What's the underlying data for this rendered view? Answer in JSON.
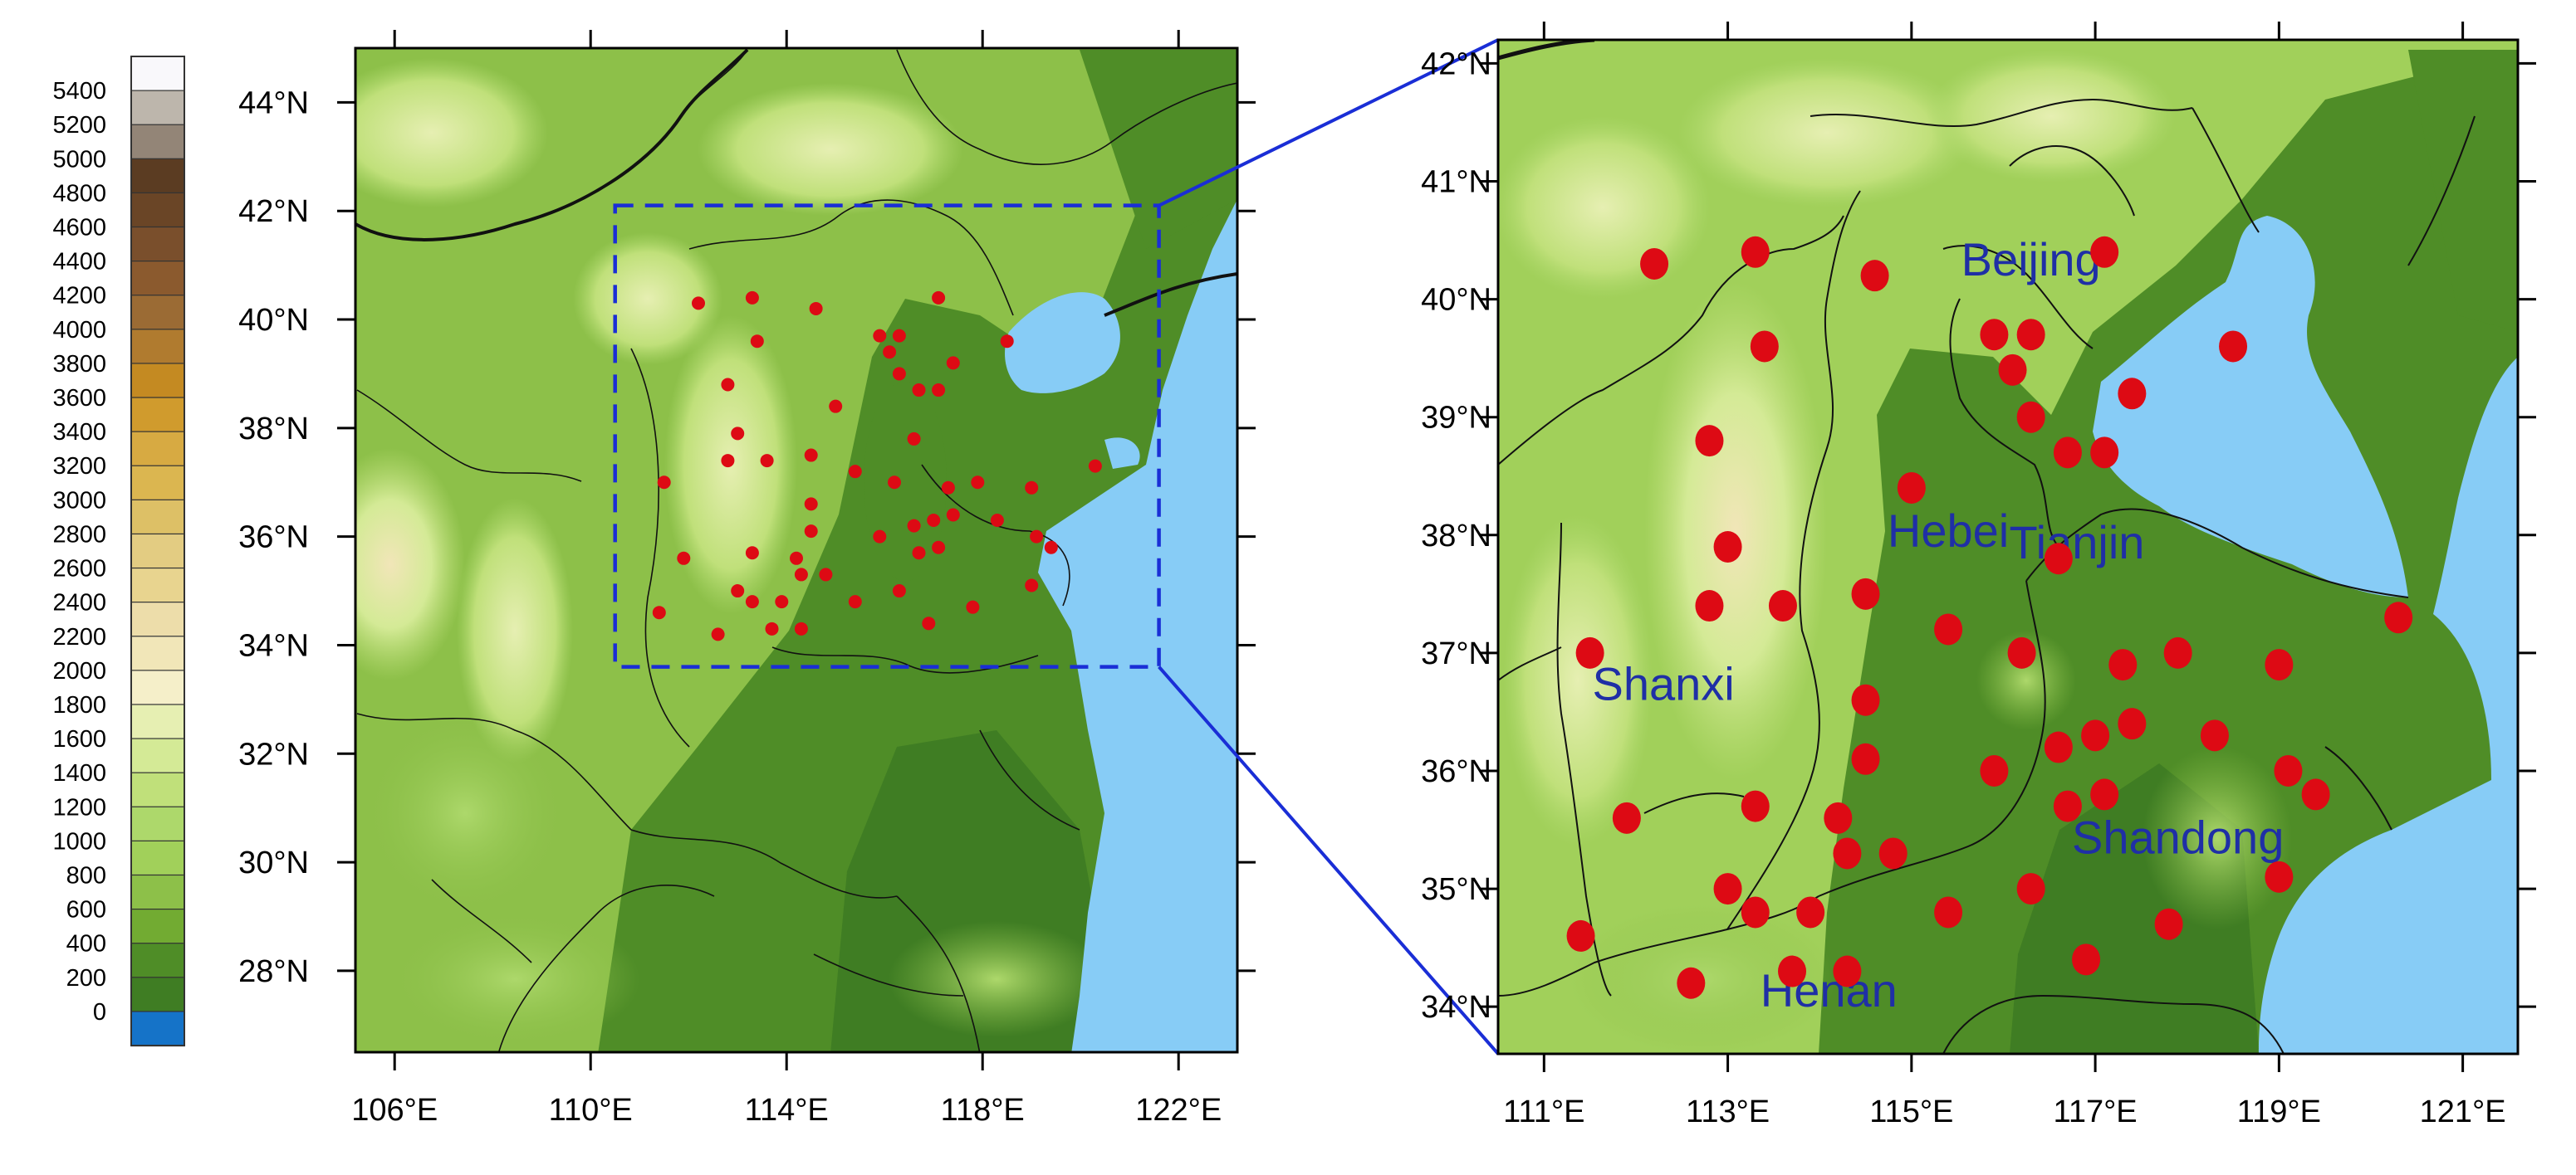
{
  "colors": {
    "water": "#87ccf6",
    "zoom_box": "#1a2ed6",
    "station": "#dd0a14",
    "boundary": "#111111",
    "region_label": "#1f2fa6"
  },
  "colorbar": {
    "labels": [
      "5400",
      "5200",
      "5000",
      "4800",
      "4600",
      "4400",
      "4200",
      "4000",
      "3800",
      "3600",
      "3400",
      "3200",
      "3000",
      "2800",
      "2600",
      "2400",
      "2200",
      "2000",
      "1800",
      "1600",
      "1400",
      "1200",
      "1000",
      "800",
      "600",
      "400",
      "200",
      "0"
    ],
    "colors": [
      "#f9f8fb",
      "#bdb6ac",
      "#938577",
      "#5b3c22",
      "#6a4526",
      "#7a4f2c",
      "#8b5a2e",
      "#9b6b34",
      "#b07b2f",
      "#c48a22",
      "#d09b2d",
      "#d7aa42",
      "#dbb650",
      "#ddc066",
      "#e3cc82",
      "#e8d48f",
      "#edddaa",
      "#f1e6b8",
      "#f5efc9",
      "#e6efb2",
      "#d4ea96",
      "#c0e07a",
      "#add86b",
      "#a1d05a",
      "#8dc049",
      "#72ab32",
      "#4f8d27",
      "#3f7d23",
      "#1573c8"
    ]
  },
  "overview_map": {
    "lon_range": [
      105.2,
      123.2
    ],
    "lat_range": [
      26.5,
      45
    ],
    "lon_ticks": [
      {
        "value": 106,
        "label": "106°E"
      },
      {
        "value": 110,
        "label": "110°E"
      },
      {
        "value": 114,
        "label": "114°E"
      },
      {
        "value": 118,
        "label": "118°E"
      },
      {
        "value": 122,
        "label": "122°E"
      }
    ],
    "lat_ticks": [
      {
        "value": 44,
        "label": "44°N"
      },
      {
        "value": 42,
        "label": "42°N"
      },
      {
        "value": 40,
        "label": "40°N"
      },
      {
        "value": 38,
        "label": "38°N"
      },
      {
        "value": 36,
        "label": "36°N"
      },
      {
        "value": 34,
        "label": "34°N"
      },
      {
        "value": 32,
        "label": "32°N"
      },
      {
        "value": 30,
        "label": "30°N"
      },
      {
        "value": 28,
        "label": "28°N"
      }
    ],
    "zoom_box": {
      "lon_min": 110.5,
      "lon_max": 121.6,
      "lat_min": 33.6,
      "lat_max": 42.1
    }
  },
  "zoom_map": {
    "lon_range": [
      110.5,
      121.6
    ],
    "lat_range": [
      33.6,
      42.2
    ],
    "lon_ticks": [
      {
        "value": 111,
        "label": "111°E"
      },
      {
        "value": 113,
        "label": "113°E"
      },
      {
        "value": 115,
        "label": "115°E"
      },
      {
        "value": 117,
        "label": "117°E"
      },
      {
        "value": 119,
        "label": "119°E"
      },
      {
        "value": 121,
        "label": "121°E"
      }
    ],
    "lat_ticks": [
      {
        "value": 42,
        "label": "42°N"
      },
      {
        "value": 41,
        "label": "41°N"
      },
      {
        "value": 40,
        "label": "40°N"
      },
      {
        "value": 39,
        "label": "39°N"
      },
      {
        "value": 38,
        "label": "38°N"
      },
      {
        "value": 37,
        "label": "37°N"
      },
      {
        "value": 36,
        "label": "36°N"
      },
      {
        "value": 35,
        "label": "35°N"
      },
      {
        "value": 34,
        "label": "34°N"
      }
    ],
    "region_labels": [
      {
        "text": "Beijing",
        "lon": 116.3,
        "lat": 40.2
      },
      {
        "text": "Tianjin",
        "lon": 116.8,
        "lat": 37.8
      },
      {
        "text": "Hebei",
        "lon": 115.4,
        "lat": 37.9
      },
      {
        "text": "Shanxi",
        "lon": 112.3,
        "lat": 36.6
      },
      {
        "text": "Shandong",
        "lon": 117.9,
        "lat": 35.3
      },
      {
        "text": "Henan",
        "lon": 114.1,
        "lat": 34.0
      }
    ]
  },
  "stations": [
    {
      "lon": 112.2,
      "lat": 40.3
    },
    {
      "lon": 113.3,
      "lat": 40.4
    },
    {
      "lon": 114.6,
      "lat": 40.2
    },
    {
      "lon": 117.1,
      "lat": 40.4
    },
    {
      "lon": 113.4,
      "lat": 39.6
    },
    {
      "lon": 115.9,
      "lat": 39.7
    },
    {
      "lon": 116.3,
      "lat": 39.7
    },
    {
      "lon": 116.1,
      "lat": 39.4
    },
    {
      "lon": 118.5,
      "lat": 39.6
    },
    {
      "lon": 116.3,
      "lat": 39.0
    },
    {
      "lon": 117.4,
      "lat": 39.2
    },
    {
      "lon": 112.8,
      "lat": 38.8
    },
    {
      "lon": 116.7,
      "lat": 38.7
    },
    {
      "lon": 117.1,
      "lat": 38.7
    },
    {
      "lon": 115.0,
      "lat": 38.4
    },
    {
      "lon": 113.0,
      "lat": 37.9
    },
    {
      "lon": 116.6,
      "lat": 37.8
    },
    {
      "lon": 114.5,
      "lat": 37.5
    },
    {
      "lon": 112.8,
      "lat": 37.4
    },
    {
      "lon": 113.6,
      "lat": 37.4
    },
    {
      "lon": 115.4,
      "lat": 37.2
    },
    {
      "lon": 120.3,
      "lat": 37.3
    },
    {
      "lon": 111.5,
      "lat": 37.0
    },
    {
      "lon": 116.2,
      "lat": 37.0
    },
    {
      "lon": 117.3,
      "lat": 36.9
    },
    {
      "lon": 117.9,
      "lat": 37.0
    },
    {
      "lon": 119.0,
      "lat": 36.9
    },
    {
      "lon": 114.5,
      "lat": 36.6
    },
    {
      "lon": 116.6,
      "lat": 36.2
    },
    {
      "lon": 117.0,
      "lat": 36.3
    },
    {
      "lon": 117.4,
      "lat": 36.4
    },
    {
      "lon": 118.3,
      "lat": 36.3
    },
    {
      "lon": 114.5,
      "lat": 36.1
    },
    {
      "lon": 115.9,
      "lat": 36.0
    },
    {
      "lon": 119.1,
      "lat": 36.0
    },
    {
      "lon": 119.4,
      "lat": 35.8
    },
    {
      "lon": 117.1,
      "lat": 35.8
    },
    {
      "lon": 116.7,
      "lat": 35.7
    },
    {
      "lon": 111.9,
      "lat": 35.6
    },
    {
      "lon": 113.3,
      "lat": 35.7
    },
    {
      "lon": 114.2,
      "lat": 35.6
    },
    {
      "lon": 114.3,
      "lat": 35.3
    },
    {
      "lon": 114.8,
      "lat": 35.3
    },
    {
      "lon": 113.0,
      "lat": 35.0
    },
    {
      "lon": 116.3,
      "lat": 35.0
    },
    {
      "lon": 119.0,
      "lat": 35.1
    },
    {
      "lon": 113.3,
      "lat": 34.8
    },
    {
      "lon": 113.9,
      "lat": 34.8
    },
    {
      "lon": 115.4,
      "lat": 34.8
    },
    {
      "lon": 117.8,
      "lat": 34.7
    },
    {
      "lon": 111.4,
      "lat": 34.6
    },
    {
      "lon": 113.7,
      "lat": 34.3
    },
    {
      "lon": 114.3,
      "lat": 34.3
    },
    {
      "lon": 116.9,
      "lat": 34.4
    },
    {
      "lon": 112.6,
      "lat": 34.2
    }
  ]
}
